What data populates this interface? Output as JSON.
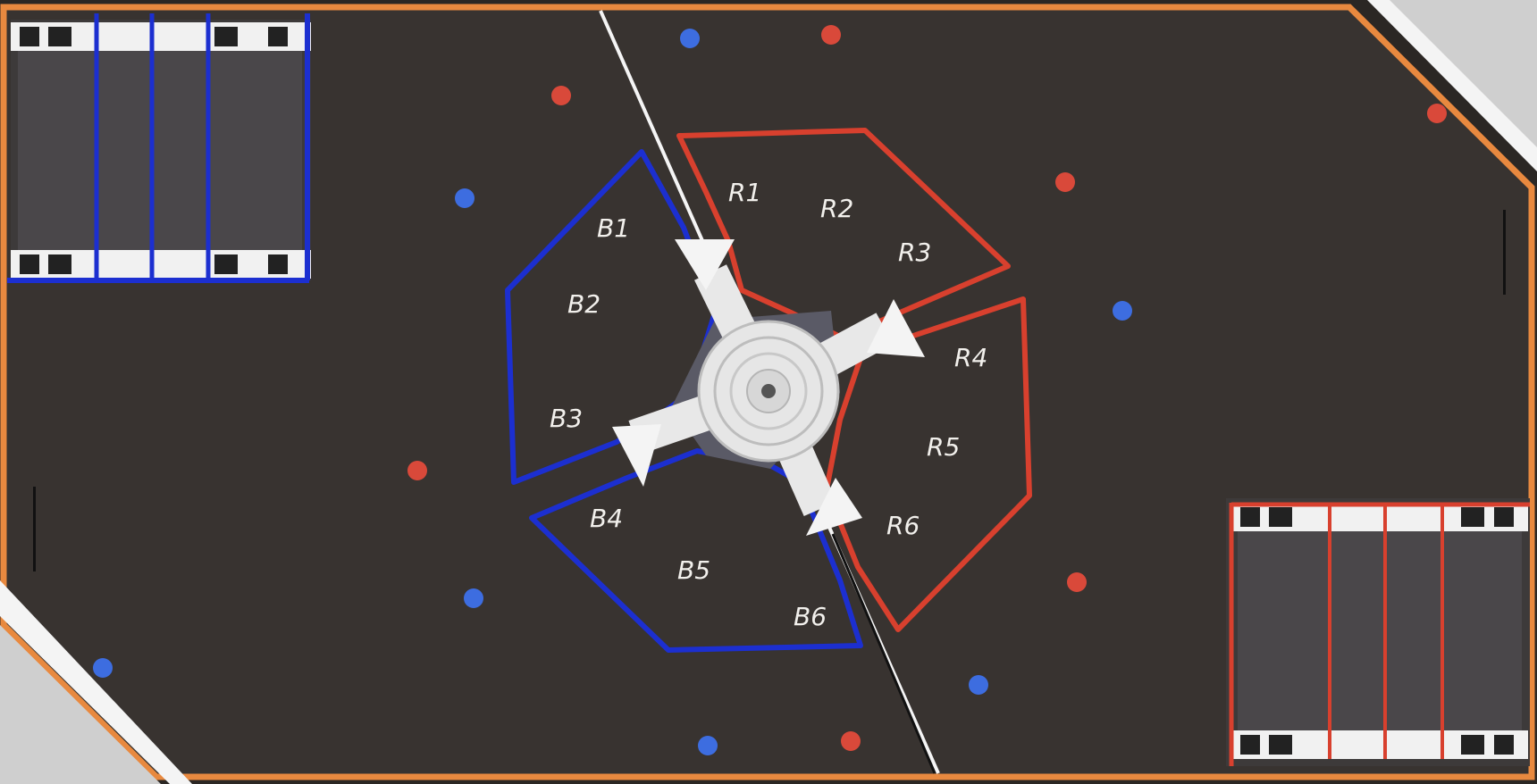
{
  "colors": {
    "field": "#383330",
    "border": "#e8893f",
    "blue": "#1c2fd0",
    "red": "#d8402e",
    "ball_blue": "#3d6de0",
    "ball_red": "#d9493a",
    "white": "#f3f3f3"
  },
  "zones": {
    "blue": [
      "B1",
      "B2",
      "B3",
      "B4",
      "B5",
      "B6"
    ],
    "red": [
      "R1",
      "R2",
      "R3",
      "R4",
      "R5",
      "R6"
    ]
  },
  "icons": [
    "blue-goal-platform",
    "red-goal-platform",
    "center-spinner",
    "corner-ramp"
  ]
}
